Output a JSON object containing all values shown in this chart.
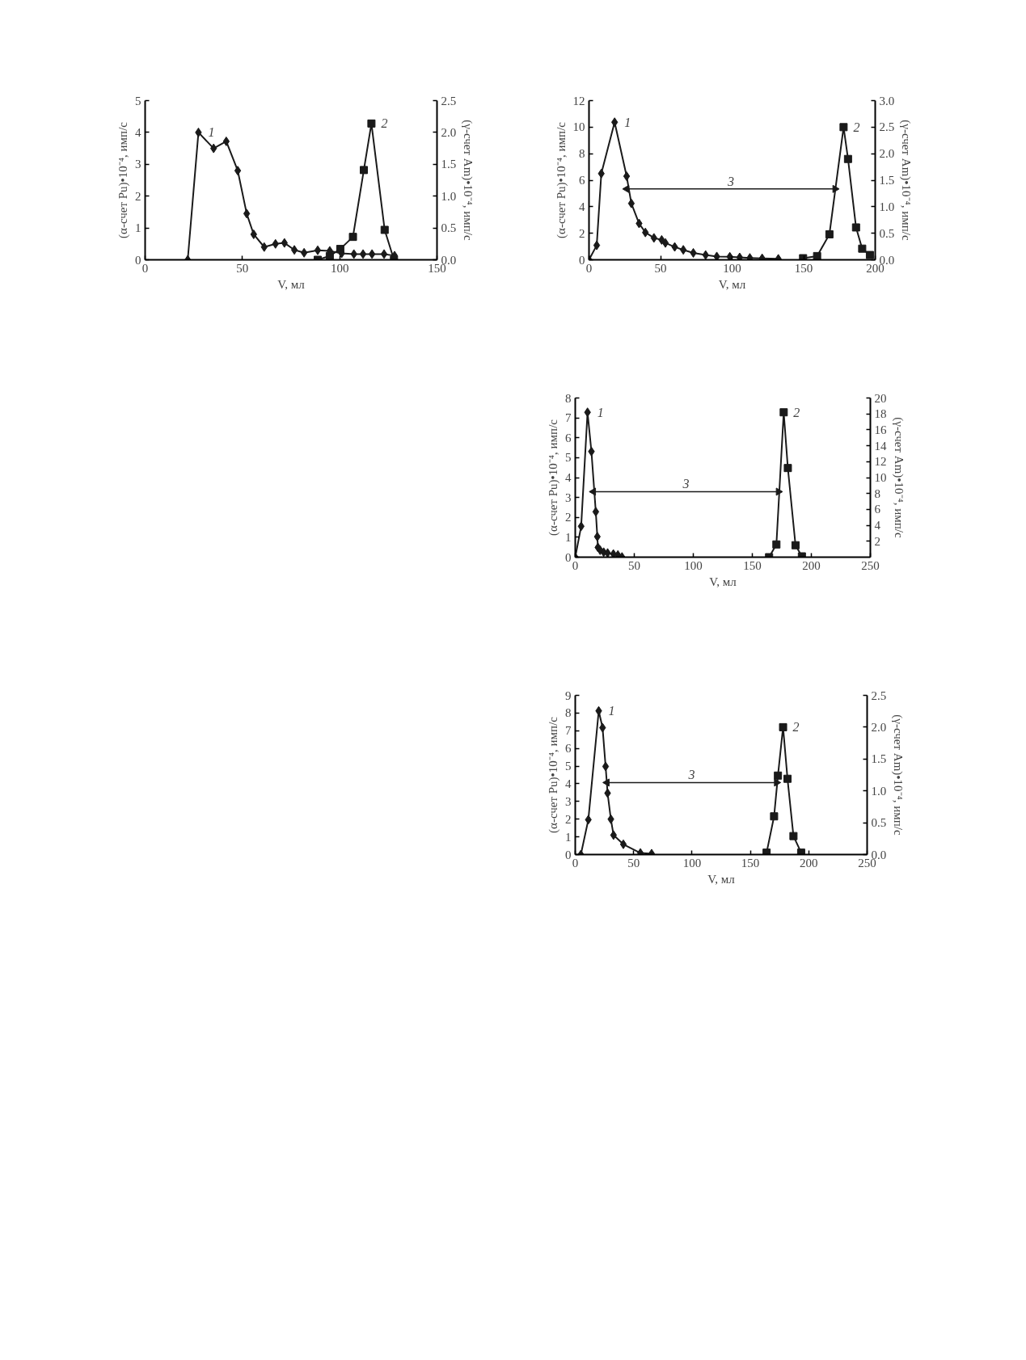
{
  "chart_data": [
    {
      "type": "line",
      "xlabel": "V, мл",
      "ylabel": "(α-счет Pu)•10⁻⁴, имп/с",
      "y2label": "(γ-счет Am)•10⁻⁴, имп/с",
      "grid": false,
      "xlim": [
        0,
        150
      ],
      "xticks": [
        0,
        50,
        100,
        150
      ],
      "ylim": [
        0,
        5
      ],
      "yticks": [
        0,
        1,
        2,
        3,
        4,
        5
      ],
      "y2lim": [
        0,
        2.5
      ],
      "y2ticks": [
        {
          "value": 0,
          "label": "0.0"
        },
        {
          "value": 0.5,
          "label": "0.5"
        },
        {
          "value": 1,
          "label": "1.0"
        },
        {
          "value": 1.5,
          "label": "1.5"
        },
        {
          "value": 2,
          "label": "2.0"
        },
        {
          "value": 2.5,
          "label": "2.5"
        }
      ],
      "series": [
        {
          "name": "1",
          "color": "#1a1a1a",
          "marker": "diamond",
          "x": [
            21.9,
            27.4,
            35.2,
            41.7,
            47.6,
            52.2,
            55.8,
            61.2,
            67.0,
            71.6,
            76.7,
            81.7,
            88.7,
            94.9,
            101,
            107.3,
            112,
            116.6,
            122.8,
            128.2
          ],
          "values": [
            0,
            4.0,
            3.5,
            3.72,
            2.8,
            1.45,
            0.8,
            0.4,
            0.5,
            0.53,
            0.31,
            0.22,
            0.3,
            0.28,
            0.2,
            0.18,
            0.18,
            0.18,
            0.18,
            0.13
          ]
        },
        {
          "name": "2",
          "color": "#1a1a1a",
          "marker": "square",
          "axis": "y2",
          "x": [
            88.7,
            94.9,
            100.3,
            106.8,
            112.4,
            116.3,
            123.1,
            127.9
          ],
          "values": [
            0,
            0.06,
            0.17,
            0.36,
            1.41,
            2.14,
            0.47,
            0
          ]
        }
      ]
    },
    {
      "type": "line",
      "xlabel": "V, мл",
      "ylabel": "(α-счет Pu)•10⁻⁴, имп/с",
      "y2label": "(γ-счет Am)•10⁻⁴, имп/с",
      "grid": false,
      "xlim": [
        0,
        200
      ],
      "xticks": [
        0,
        50,
        100,
        150,
        200
      ],
      "ylim": [
        0,
        12
      ],
      "yticks": [
        0,
        2,
        4,
        6,
        8,
        10,
        12
      ],
      "y2lim": [
        0,
        3
      ],
      "y2ticks": [
        {
          "value": 0,
          "label": "0.0"
        },
        {
          "value": 0.5,
          "label": "0.5"
        },
        {
          "value": 1,
          "label": "1.0"
        },
        {
          "value": 1.5,
          "label": "1.5"
        },
        {
          "value": 2,
          "label": "2.0"
        },
        {
          "value": 2.5,
          "label": "2.5"
        },
        {
          "value": 3,
          "label": "3.0"
        }
      ],
      "series": [
        {
          "name": "1",
          "color": "#1a1a1a",
          "marker": "diamond",
          "x": [
            0,
            5.4,
            8.6,
            17.9,
            26.3,
            29.6,
            35,
            39.4,
            45.4,
            50.8,
            53.4,
            59.9,
            65.9,
            72.9,
            81.5,
            89.3,
            98.4,
            105.3,
            112.4,
            121,
            132.3
          ],
          "values": [
            0,
            1.09,
            6.5,
            10.37,
            6.3,
            4.25,
            2.74,
            2.06,
            1.65,
            1.5,
            1.27,
            0.97,
            0.75,
            0.52,
            0.36,
            0.25,
            0.23,
            0.18,
            0.14,
            0.11,
            0.07
          ]
        },
        {
          "name": "2",
          "color": "#1a1a1a",
          "marker": "square",
          "axis": "y2",
          "x": [
            149.6,
            159.4,
            168,
            177.9,
            181,
            186.6,
            190.9,
            196.3
          ],
          "values": [
            0.03,
            0.07,
            0.48,
            2.5,
            1.9,
            0.61,
            0.21,
            0.09
          ]
        },
        {
          "name": "3",
          "type": "line",
          "color": "#1a1a1a",
          "marker": "triangle",
          "x": [
            26.4,
            171.9
          ],
          "values": [
            5.34,
            5.34
          ]
        }
      ]
    },
    {
      "type": "line",
      "xlabel": "V, мл",
      "ylabel": "(α-счет Pu)•10⁻⁴, имп/с",
      "y2label": "(γ-счет Am)•10⁻⁴, имп/с",
      "grid": false,
      "xlim": [
        0,
        250
      ],
      "xticks": [
        0,
        50,
        100,
        150,
        200,
        250
      ],
      "ylim": [
        0,
        8
      ],
      "yticks": [
        0,
        1,
        2,
        3,
        4,
        5,
        6,
        7,
        8
      ],
      "y2lim": [
        0,
        20
      ],
      "y2ticks": [
        2,
        4,
        6,
        8,
        10,
        12,
        14,
        16,
        18,
        20
      ],
      "series": [
        {
          "name": "1",
          "color": "#1a1a1a",
          "marker": "diamond",
          "x": [
            0,
            5,
            10.4,
            13.7,
            17.4,
            18.7,
            19.2,
            21.1,
            24.1,
            27.4,
            32.3,
            36.1,
            39.6
          ],
          "values": [
            0,
            1.55,
            7.28,
            5.31,
            2.28,
            1.03,
            0.49,
            0.35,
            0.25,
            0.21,
            0.16,
            0.11,
            0.01
          ]
        },
        {
          "name": "2",
          "color": "#1a1a1a",
          "marker": "square",
          "axis": "y2",
          "x": [
            164.2,
            170.4,
            176.6,
            180.1,
            186.6,
            192
          ],
          "values": [
            0,
            1.6,
            18.2,
            11.2,
            1.5,
            0.1
          ]
        },
        {
          "name": "3",
          "type": "line",
          "color": "#1a1a1a",
          "marker": "triangle",
          "x": [
            15.4,
            172.1
          ],
          "values": [
            3.29,
            3.29
          ]
        }
      ]
    },
    {
      "type": "line",
      "xlabel": "V, мл",
      "ylabel": "(α-счет Pu)•10⁻⁴, имп/с",
      "y2label": "(γ-счет Am)•10⁻⁴, имп/с",
      "grid": false,
      "xlim": [
        0,
        250
      ],
      "xticks": [
        0,
        50,
        100,
        150,
        200,
        250
      ],
      "ylim": [
        0,
        9
      ],
      "yticks": [
        0,
        1,
        2,
        3,
        4,
        5,
        6,
        7,
        8,
        9
      ],
      "y2lim": [
        0,
        2.5
      ],
      "y2ticks": [
        {
          "value": 0,
          "label": "0.0"
        },
        {
          "value": 0.5,
          "label": "0.5"
        },
        {
          "value": 1,
          "label": "1.0"
        },
        {
          "value": 1.5,
          "label": "1.5"
        },
        {
          "value": 2,
          "label": "2.0"
        },
        {
          "value": 2.5,
          "label": "2.5"
        }
      ],
      "series": [
        {
          "name": "1",
          "color": "#1a1a1a",
          "marker": "diamond",
          "x": [
            4.8,
            11.2,
            20.1,
            23.4,
            26,
            27.7,
            30.5,
            32.8,
            41.2,
            55.8,
            65.4
          ],
          "values": [
            0,
            1.97,
            8.12,
            7.17,
            4.98,
            3.47,
            2.0,
            1.1,
            0.58,
            0.09,
            0.05
          ]
        },
        {
          "name": "2",
          "color": "#1a1a1a",
          "marker": "square",
          "axis": "y2",
          "x": [
            163.9,
            170.3,
            173.6,
            178,
            181.8,
            186.9,
            193.5
          ],
          "values": [
            0.03,
            0.6,
            1.24,
            2.0,
            1.19,
            0.29,
            0.03
          ]
        },
        {
          "name": "3",
          "type": "line",
          "color": "#1a1a1a",
          "marker": "triangle",
          "x": [
            27.2,
            172.4
          ],
          "values": [
            4.07,
            4.07
          ]
        }
      ]
    }
  ]
}
